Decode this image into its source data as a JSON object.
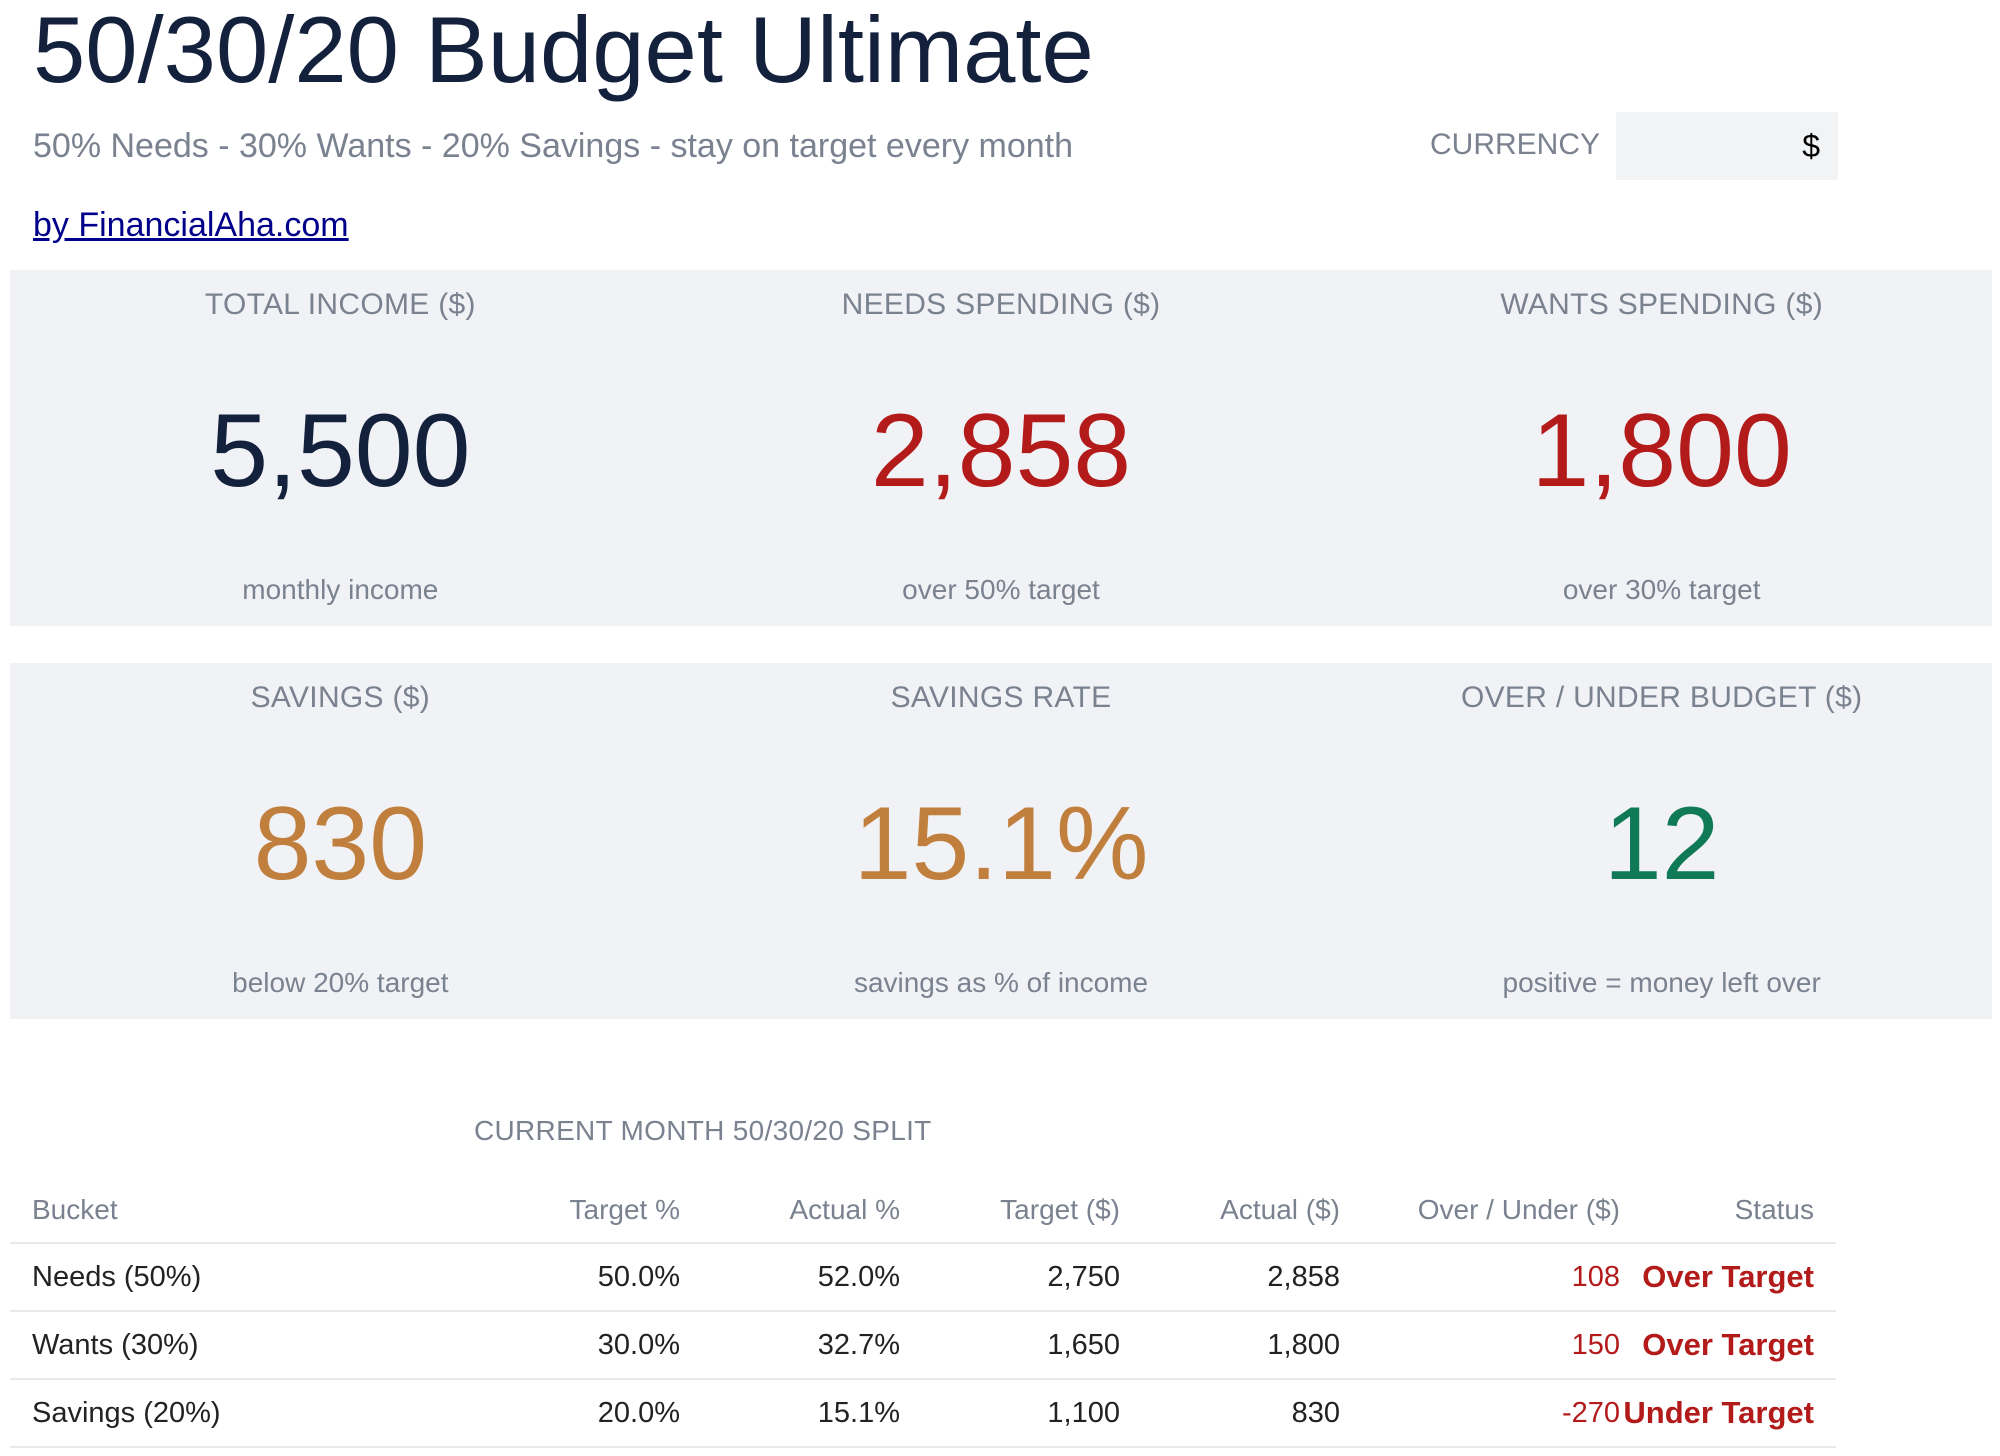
{
  "header": {
    "title": "50/30/20 Budget Ultimate",
    "subtitle": "50% Needs - 30% Wants - 20% Savings - stay on target every month",
    "byline": "by FinancialAha.com",
    "currency_label": "CURRENCY",
    "currency_value": "$"
  },
  "kpis_row1": [
    {
      "label": "TOTAL INCOME ($)",
      "value": "5,500",
      "caption": "monthly income",
      "color": "#14213d"
    },
    {
      "label": "NEEDS SPENDING ($)",
      "value": "2,858",
      "caption": "over 50% target",
      "color": "#b31b1b"
    },
    {
      "label": "WANTS SPENDING ($)",
      "value": "1,800",
      "caption": "over 30% target",
      "color": "#b31b1b"
    }
  ],
  "kpis_row2": [
    {
      "label": "SAVINGS ($)",
      "value": "830",
      "caption": "below 20% target",
      "color": "#c17f3e"
    },
    {
      "label": "SAVINGS RATE",
      "value": "15.1%",
      "caption": "savings as % of income",
      "color": "#c17f3e"
    },
    {
      "label": "OVER / UNDER BUDGET ($)",
      "value": "12",
      "caption": "positive = money left over",
      "color": "#0f7a55"
    }
  ],
  "split": {
    "title": "CURRENT MONTH 50/30/20 SPLIT",
    "headers": [
      "Bucket",
      "Target %",
      "Actual %",
      "Target ($)",
      "Actual ($)",
      "Over / Under ($)",
      "Status"
    ],
    "rows": [
      {
        "bucket": "Needs (50%)",
        "target_pct": "50.0%",
        "actual_pct": "52.0%",
        "target_amt": "2,750",
        "actual_amt": "2,858",
        "over_under": "108",
        "status": "Over Target"
      },
      {
        "bucket": "Wants (30%)",
        "target_pct": "30.0%",
        "actual_pct": "32.7%",
        "target_amt": "1,650",
        "actual_amt": "1,800",
        "over_under": "150",
        "status": "Over Target"
      },
      {
        "bucket": "Savings (20%)",
        "target_pct": "20.0%",
        "actual_pct": "15.1%",
        "target_amt": "1,100",
        "actual_amt": "830",
        "over_under": "-270",
        "status": "Under Target"
      }
    ]
  }
}
